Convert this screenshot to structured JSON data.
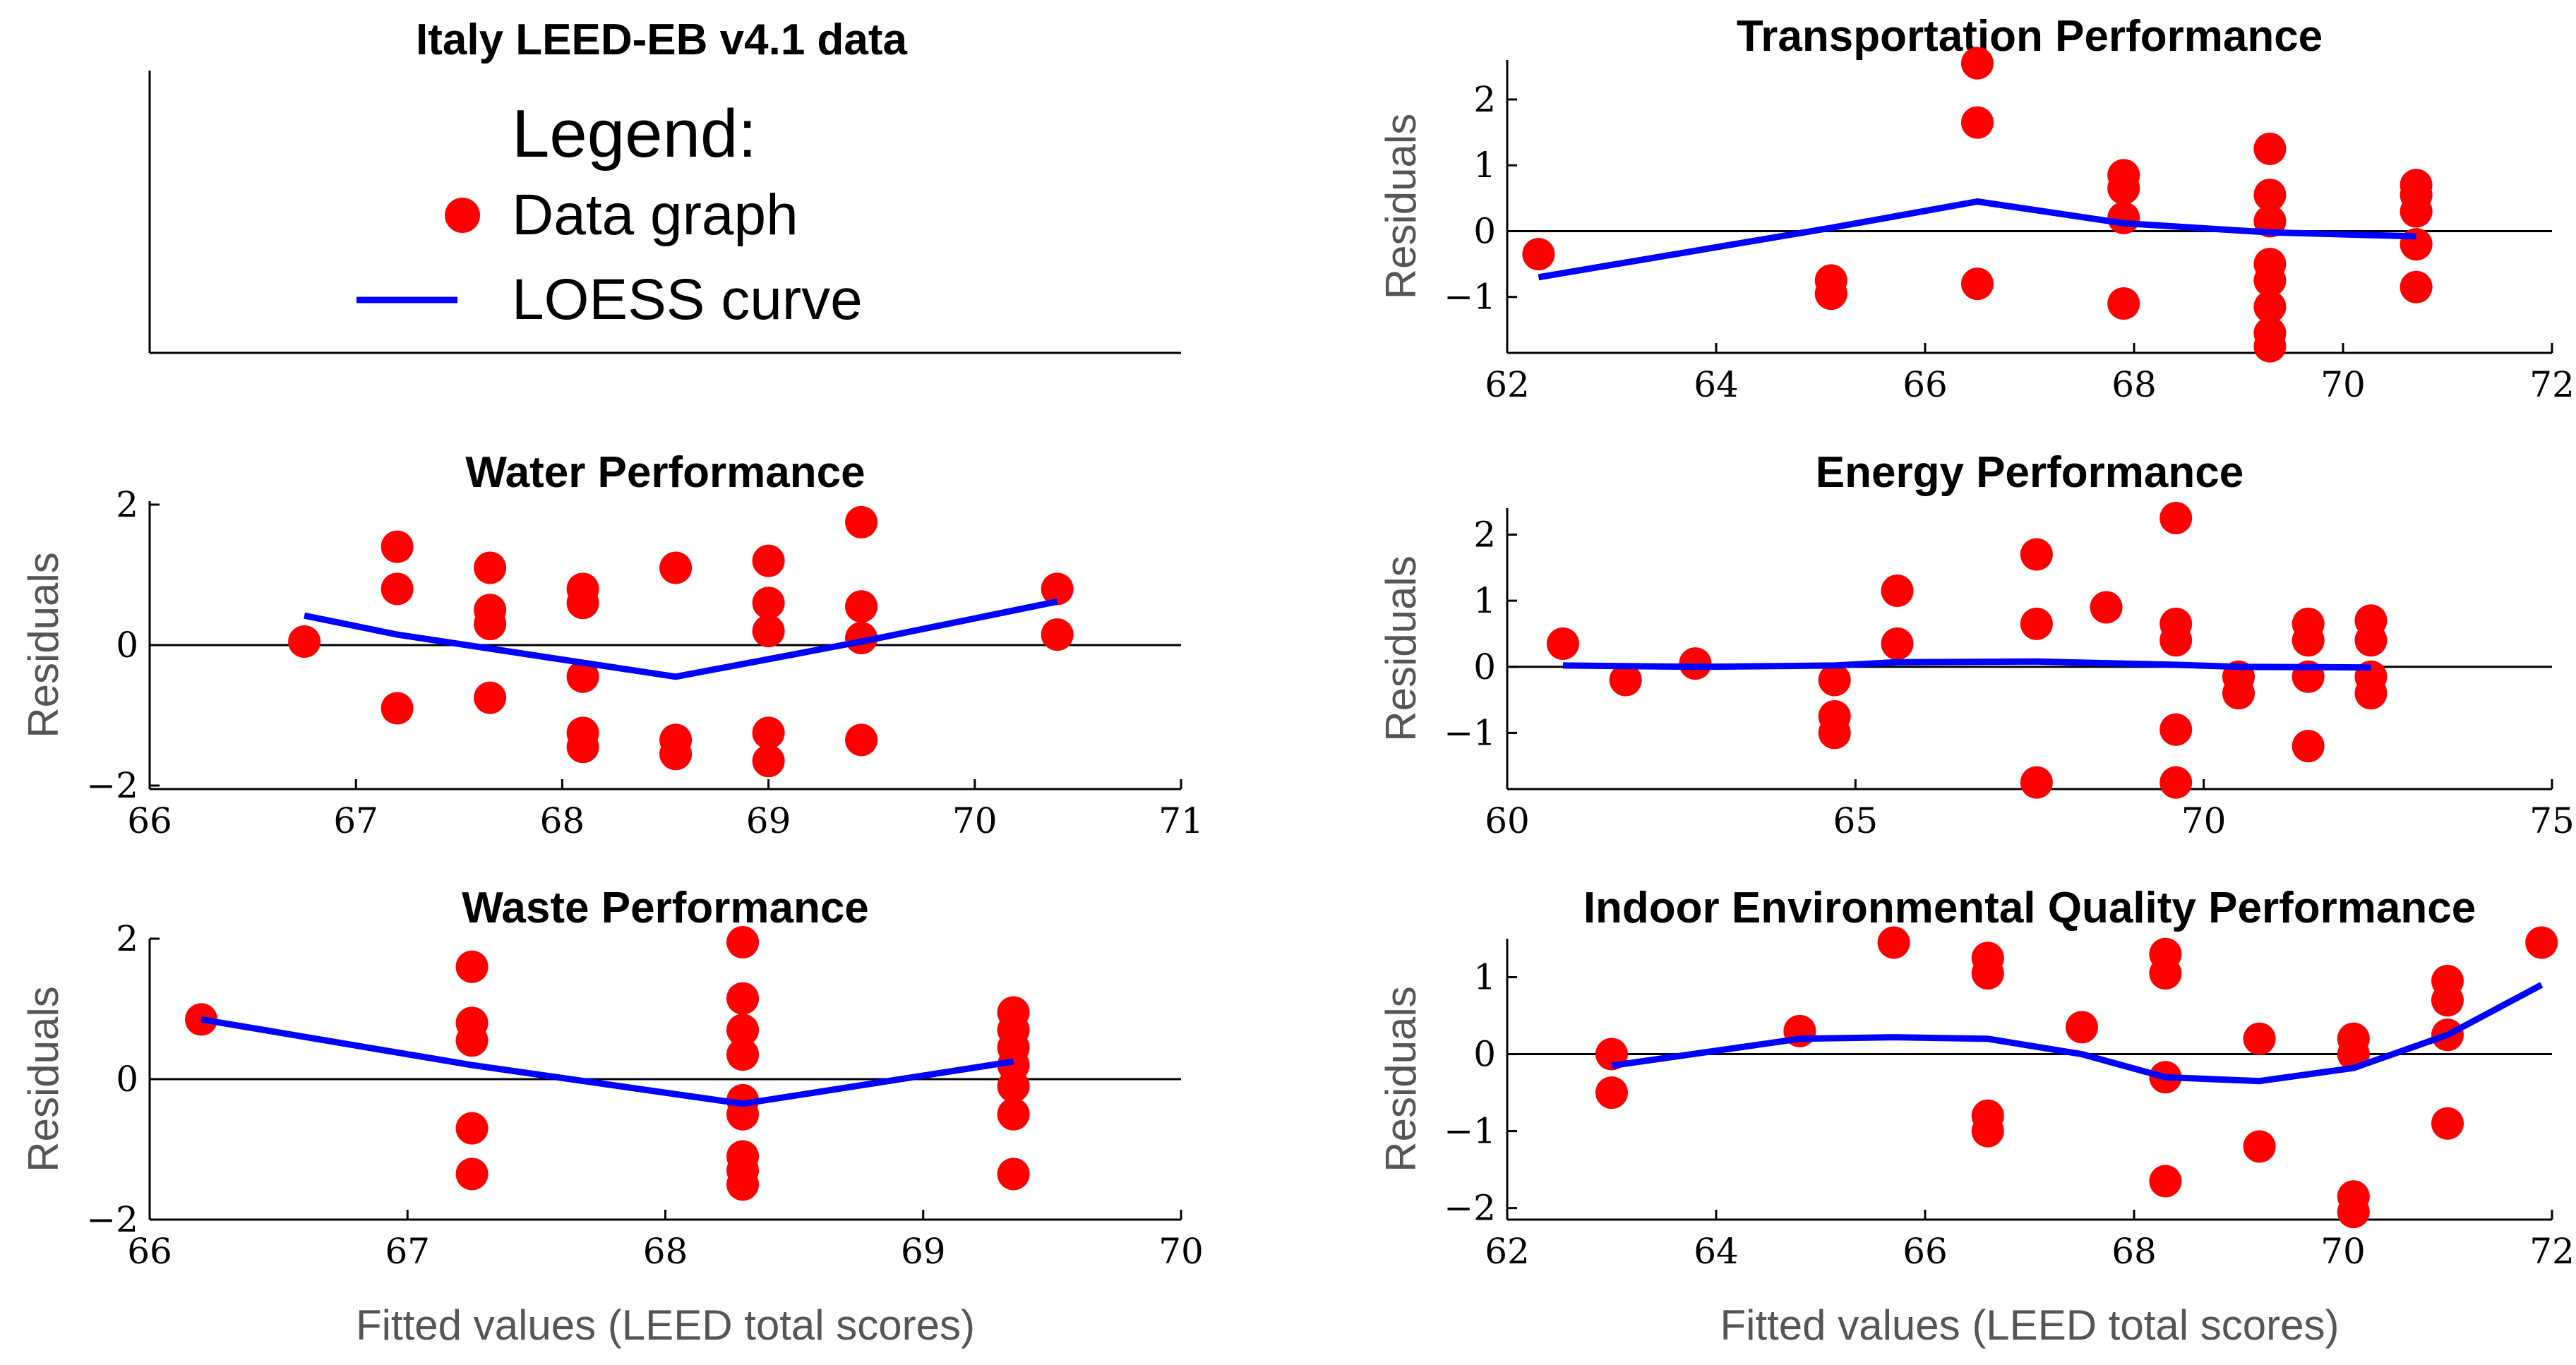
{
  "figure_title": "Italy LEED-EB v4.1 data",
  "legend": {
    "title": "Legend:",
    "data_label": "Data graph",
    "curve_label": "LOESS curve",
    "data_color": "#ff0000",
    "curve_color": "#0000ff"
  },
  "chart_data": [
    {
      "id": "transportation",
      "type": "scatter",
      "title": "Transportation Performance",
      "ylabel": "Residuals",
      "xlabel": "",
      "xlim": [
        62,
        72
      ],
      "ylim": [
        -1.85,
        2.6
      ],
      "xticks": [
        62,
        64,
        66,
        68,
        70,
        72
      ],
      "yticks": [
        -1,
        0,
        1,
        2
      ],
      "points": [
        [
          62.3,
          -0.35
        ],
        [
          65.1,
          -0.75
        ],
        [
          65.1,
          -0.95
        ],
        [
          66.5,
          2.55
        ],
        [
          66.5,
          1.65
        ],
        [
          66.5,
          -0.8
        ],
        [
          67.9,
          0.85
        ],
        [
          67.9,
          0.65
        ],
        [
          67.9,
          0.2
        ],
        [
          67.9,
          -1.1
        ],
        [
          69.3,
          1.25
        ],
        [
          69.3,
          0.55
        ],
        [
          69.3,
          0.15
        ],
        [
          69.3,
          -0.5
        ],
        [
          69.3,
          -0.75
        ],
        [
          69.3,
          -1.15
        ],
        [
          69.3,
          -1.55
        ],
        [
          69.3,
          -1.75
        ],
        [
          70.7,
          0.7
        ],
        [
          70.7,
          0.55
        ],
        [
          70.7,
          0.3
        ],
        [
          70.7,
          -0.2
        ],
        [
          70.7,
          -0.85
        ]
      ],
      "loess": [
        [
          62.3,
          -0.7
        ],
        [
          65.1,
          0.05
        ],
        [
          66.5,
          0.45
        ],
        [
          67.9,
          0.12
        ],
        [
          69.3,
          -0.02
        ],
        [
          70.7,
          -0.08
        ]
      ]
    },
    {
      "id": "water",
      "type": "scatter",
      "title": "Water Performance",
      "ylabel": "Residuals",
      "xlabel": "",
      "xlim": [
        66,
        71
      ],
      "ylim": [
        -2.05,
        2.05
      ],
      "xticks": [
        66,
        67,
        68,
        69,
        70,
        71
      ],
      "yticks": [
        -2,
        0,
        2
      ],
      "points": [
        [
          66.75,
          0.05
        ],
        [
          67.2,
          1.4
        ],
        [
          67.2,
          0.8
        ],
        [
          67.2,
          -0.9
        ],
        [
          67.65,
          1.1
        ],
        [
          67.65,
          0.5
        ],
        [
          67.65,
          0.3
        ],
        [
          67.65,
          -0.75
        ],
        [
          68.1,
          0.8
        ],
        [
          68.1,
          0.6
        ],
        [
          68.1,
          -0.45
        ],
        [
          68.1,
          -1.25
        ],
        [
          68.1,
          -1.45
        ],
        [
          68.55,
          1.1
        ],
        [
          68.55,
          -1.35
        ],
        [
          68.55,
          -1.55
        ],
        [
          69.0,
          1.2
        ],
        [
          69.0,
          0.6
        ],
        [
          69.0,
          0.2
        ],
        [
          69.0,
          -1.25
        ],
        [
          69.0,
          -1.65
        ],
        [
          69.45,
          1.75
        ],
        [
          69.45,
          0.55
        ],
        [
          69.45,
          0.1
        ],
        [
          69.45,
          -1.35
        ],
        [
          70.4,
          0.8
        ],
        [
          70.4,
          0.15
        ]
      ],
      "loess": [
        [
          66.75,
          0.42
        ],
        [
          67.2,
          0.15
        ],
        [
          67.65,
          -0.05
        ],
        [
          68.1,
          -0.25
        ],
        [
          68.55,
          -0.45
        ],
        [
          69.0,
          -0.2
        ],
        [
          69.45,
          0.05
        ],
        [
          70.4,
          0.62
        ]
      ]
    },
    {
      "id": "energy",
      "type": "scatter",
      "title": "Energy Performance",
      "ylabel": "Residuals",
      "xlabel": "",
      "xlim": [
        60,
        75
      ],
      "ylim": [
        -1.85,
        2.4
      ],
      "xticks": [
        60,
        65,
        70,
        75
      ],
      "yticks": [
        -1,
        0,
        1,
        2
      ],
      "points": [
        [
          60.8,
          0.35
        ],
        [
          61.7,
          -0.2
        ],
        [
          62.7,
          0.05
        ],
        [
          64.7,
          -0.2
        ],
        [
          64.7,
          -0.75
        ],
        [
          64.7,
          -1.0
        ],
        [
          65.6,
          1.15
        ],
        [
          65.6,
          0.35
        ],
        [
          67.6,
          1.7
        ],
        [
          67.6,
          0.65
        ],
        [
          67.6,
          -1.75
        ],
        [
          68.6,
          0.9
        ],
        [
          69.6,
          2.25
        ],
        [
          69.6,
          0.65
        ],
        [
          69.6,
          0.4
        ],
        [
          69.6,
          -0.95
        ],
        [
          69.6,
          -1.75
        ],
        [
          70.5,
          -0.15
        ],
        [
          70.5,
          -0.4
        ],
        [
          71.5,
          0.65
        ],
        [
          71.5,
          0.4
        ],
        [
          71.5,
          -0.15
        ],
        [
          71.5,
          -1.2
        ],
        [
          72.4,
          0.7
        ],
        [
          72.4,
          0.4
        ],
        [
          72.4,
          -0.15
        ],
        [
          72.4,
          -0.4
        ]
      ],
      "loess": [
        [
          60.8,
          0.02
        ],
        [
          62.7,
          0.0
        ],
        [
          64.7,
          0.02
        ],
        [
          65.6,
          0.07
        ],
        [
          67.6,
          0.08
        ],
        [
          69.6,
          0.03
        ],
        [
          70.5,
          0.0
        ],
        [
          72.4,
          -0.01
        ]
      ]
    },
    {
      "id": "waste",
      "type": "scatter",
      "title": "Waste Performance",
      "ylabel": "Residuals",
      "xlabel": "Fitted values (LEED total scores)",
      "xlim": [
        66,
        70
      ],
      "ylim": [
        -2.0,
        2.0
      ],
      "xticks": [
        66,
        67,
        68,
        69,
        70
      ],
      "yticks": [
        -2,
        0,
        2
      ],
      "points": [
        [
          66.2,
          0.85
        ],
        [
          67.25,
          1.6
        ],
        [
          67.25,
          0.8
        ],
        [
          67.25,
          0.55
        ],
        [
          67.25,
          -0.7
        ],
        [
          67.25,
          -1.35
        ],
        [
          68.3,
          1.95
        ],
        [
          68.3,
          1.15
        ],
        [
          68.3,
          0.7
        ],
        [
          68.3,
          0.35
        ],
        [
          68.3,
          -0.3
        ],
        [
          68.3,
          -0.5
        ],
        [
          68.3,
          -1.1
        ],
        [
          68.3,
          -1.3
        ],
        [
          68.3,
          -1.5
        ],
        [
          69.35,
          0.95
        ],
        [
          69.35,
          0.7
        ],
        [
          69.35,
          0.45
        ],
        [
          69.35,
          0.2
        ],
        [
          69.35,
          -0.1
        ],
        [
          69.35,
          -0.5
        ],
        [
          69.35,
          -1.35
        ]
      ],
      "loess": [
        [
          66.2,
          0.85
        ],
        [
          67.25,
          0.2
        ],
        [
          68.3,
          -0.35
        ],
        [
          69.35,
          0.25
        ]
      ]
    },
    {
      "id": "ieq",
      "type": "scatter",
      "title": "Indoor Environmental Quality Performance",
      "ylabel": "Residuals",
      "xlabel": "Fitted values (LEED total scores)",
      "xlim": [
        62,
        72
      ],
      "ylim": [
        -2.15,
        1.5
      ],
      "xticks": [
        62,
        64,
        66,
        68,
        70,
        72
      ],
      "yticks": [
        -2,
        -1,
        0,
        1
      ],
      "points": [
        [
          63.0,
          0.0
        ],
        [
          63.0,
          -0.5
        ],
        [
          64.8,
          0.3
        ],
        [
          65.7,
          1.45
        ],
        [
          66.6,
          1.25
        ],
        [
          66.6,
          1.05
        ],
        [
          66.6,
          -0.8
        ],
        [
          66.6,
          -1.0
        ],
        [
          67.5,
          0.35
        ],
        [
          68.3,
          1.3
        ],
        [
          68.3,
          1.05
        ],
        [
          68.3,
          -0.3
        ],
        [
          68.3,
          -1.65
        ],
        [
          69.2,
          0.2
        ],
        [
          69.2,
          -1.2
        ],
        [
          70.1,
          0.2
        ],
        [
          70.1,
          0.0
        ],
        [
          70.1,
          -1.85
        ],
        [
          70.1,
          -2.05
        ],
        [
          71.0,
          0.95
        ],
        [
          71.0,
          0.7
        ],
        [
          71.0,
          0.25
        ],
        [
          71.0,
          -0.9
        ],
        [
          71.9,
          1.45
        ]
      ],
      "loess": [
        [
          63.0,
          -0.15
        ],
        [
          64.8,
          0.2
        ],
        [
          65.7,
          0.22
        ],
        [
          66.6,
          0.2
        ],
        [
          67.5,
          0.0
        ],
        [
          68.3,
          -0.3
        ],
        [
          69.2,
          -0.35
        ],
        [
          70.1,
          -0.18
        ],
        [
          71.0,
          0.25
        ],
        [
          71.9,
          0.9
        ]
      ]
    }
  ]
}
